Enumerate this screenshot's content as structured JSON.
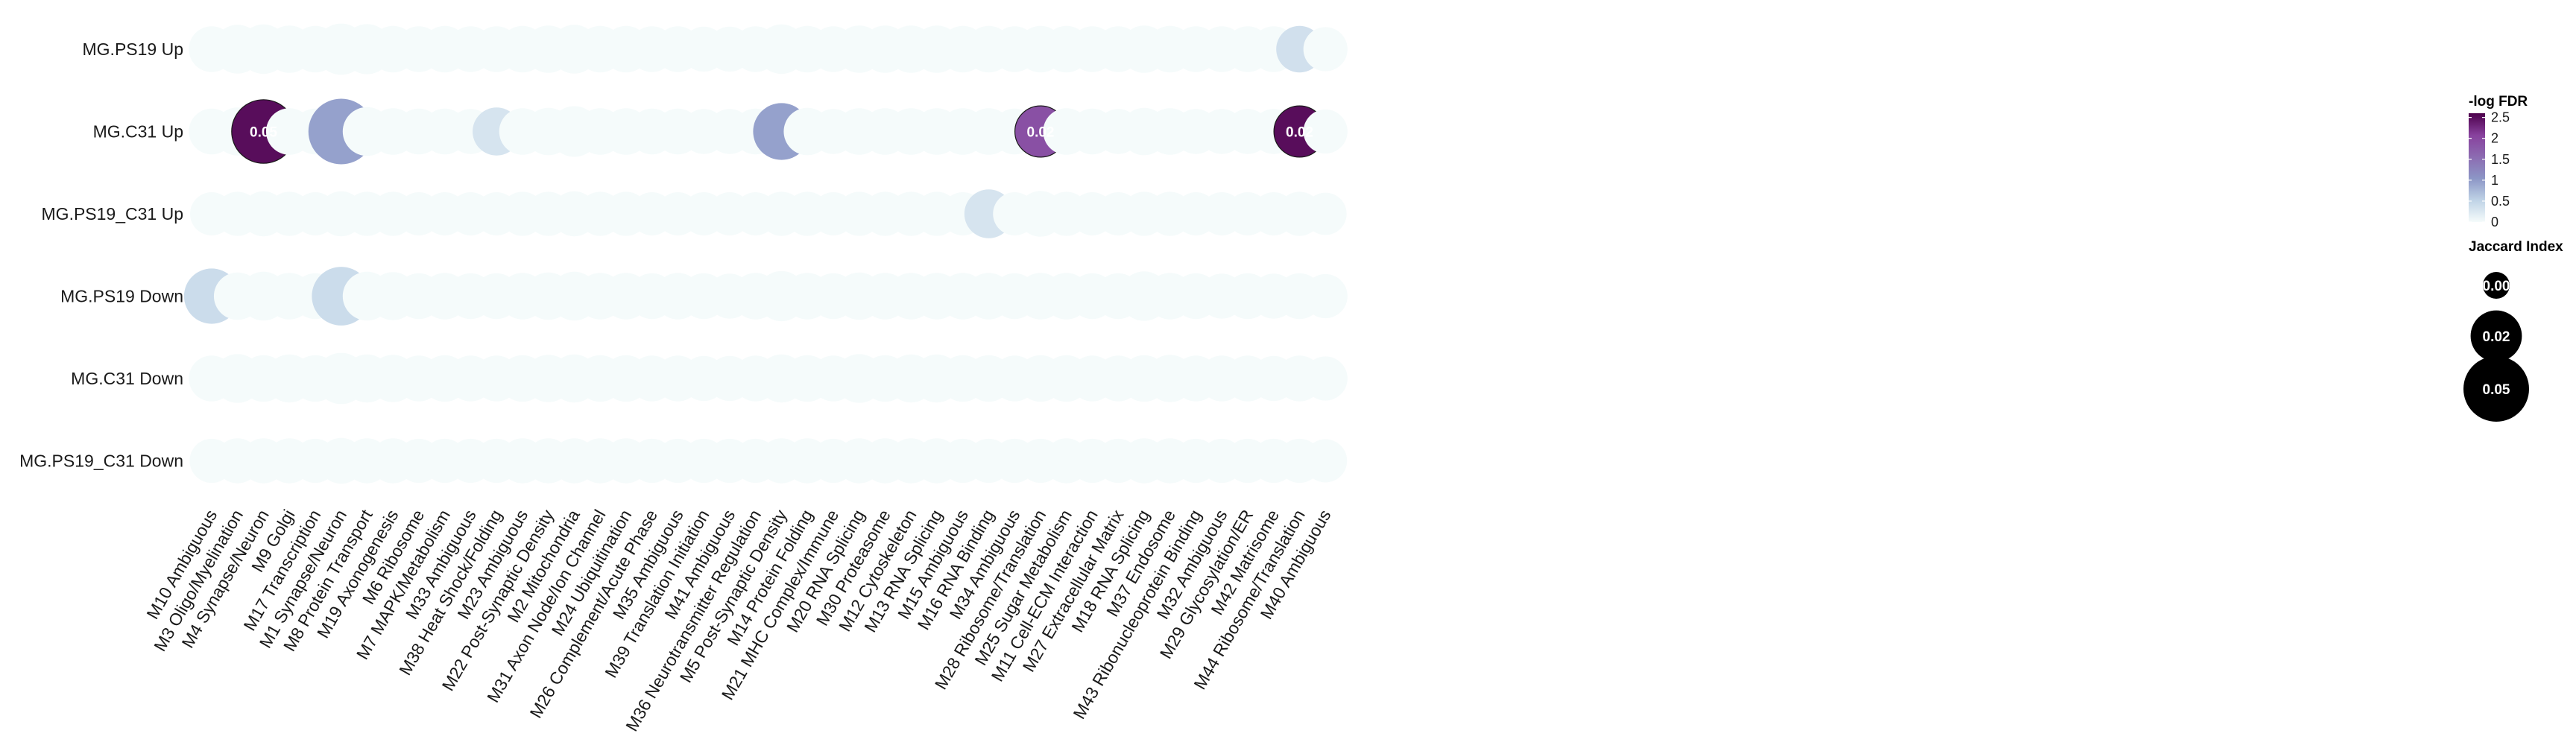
{
  "chart_data": {
    "type": "dotplot",
    "rows": [
      "MG.PS19 Up",
      "MG.C31 Up",
      "MG.PS19_C31 Up",
      "MG.PS19 Down",
      "MG.C31 Down",
      "MG.PS19_C31 Down"
    ],
    "columns": [
      "M10 Ambiguous",
      "M3 Oligo/Myelination",
      "M4 Synapse/Neuron",
      "M9 Golgi",
      "M17 Transcription",
      "M1 Synapse/Neuron",
      "M8 Protein Transport",
      "M19 Axonogenesis",
      "M6 Ribosome",
      "M7 MAPK/Metabolism",
      "M33 Ambiguous",
      "M38 Heat Shock/Folding",
      "M23 Ambiguous",
      "M22 Post-Synaptic Density",
      "M2 Mitochondria",
      "M31 Axon Node/Ion Channel",
      "M24 Ubiquitination",
      "M26 Complement/Acute Phase",
      "M35 Ambiguous",
      "M39 Translation Initiation",
      "M41 Ambiguous",
      "M36 Neurotransmitter Regulation",
      "M5 Post-Synaptic Density",
      "M14 Protein Folding",
      "M21 MHC Complex/Immune",
      "M20 RNA Splicing",
      "M30 Proteasome",
      "M12 Cytoskeleton",
      "M13 RNA Splicing",
      "M15 Ambiguous",
      "M16 RNA Binding",
      "M34 Ambiguous",
      "M28 Ribosome/Translation",
      "M25 Sugar Metabolism",
      "M11 Cell-ECM Interaction",
      "M27 Extracellular Matrix",
      "M18 RNA Splicing",
      "M37 Endosome",
      "M43 Ribonucleoprotein Binding",
      "M32 Ambiguous",
      "M29 Glycosylation/ER",
      "M42 Matrisome",
      "M44 Ribosome/Translation",
      "M40 Ambiguous"
    ],
    "jaccard": [
      [
        0.012,
        0.016,
        0.017,
        0.014,
        0.013,
        0.02,
        0.018,
        0.013,
        0.012,
        0.013,
        0.012,
        0.012,
        0.013,
        0.014,
        0.016,
        0.013,
        0.013,
        0.012,
        0.012,
        0.011,
        0.011,
        0.012,
        0.017,
        0.013,
        0.012,
        0.014,
        0.014,
        0.014,
        0.014,
        0.013,
        0.013,
        0.012,
        0.013,
        0.013,
        0.012,
        0.012,
        0.014,
        0.013,
        0.012,
        0.012,
        0.012,
        0.012,
        0.013,
        0.01
      ],
      [
        0.012,
        0.015,
        0.045,
        0.013,
        0.012,
        0.05,
        0.016,
        0.013,
        0.012,
        0.012,
        0.011,
        0.015,
        0.013,
        0.014,
        0.019,
        0.013,
        0.013,
        0.012,
        0.012,
        0.011,
        0.011,
        0.012,
        0.03,
        0.014,
        0.011,
        0.013,
        0.013,
        0.013,
        0.013,
        0.013,
        0.013,
        0.012,
        0.02,
        0.013,
        0.012,
        0.011,
        0.014,
        0.013,
        0.011,
        0.011,
        0.011,
        0.011,
        0.02,
        0.01
      ],
      [
        0.009,
        0.01,
        0.011,
        0.01,
        0.009,
        0.011,
        0.01,
        0.01,
        0.009,
        0.009,
        0.009,
        0.009,
        0.01,
        0.01,
        0.011,
        0.01,
        0.01,
        0.009,
        0.009,
        0.009,
        0.009,
        0.009,
        0.01,
        0.01,
        0.009,
        0.01,
        0.01,
        0.01,
        0.01,
        0.009,
        0.016,
        0.009,
        0.012,
        0.01,
        0.009,
        0.009,
        0.01,
        0.01,
        0.009,
        0.009,
        0.009,
        0.009,
        0.01,
        0.008
      ],
      [
        0.027,
        0.014,
        0.016,
        0.013,
        0.012,
        0.034,
        0.016,
        0.015,
        0.012,
        0.013,
        0.012,
        0.012,
        0.013,
        0.014,
        0.016,
        0.013,
        0.013,
        0.012,
        0.013,
        0.012,
        0.011,
        0.013,
        0.018,
        0.013,
        0.012,
        0.014,
        0.013,
        0.013,
        0.013,
        0.013,
        0.013,
        0.012,
        0.013,
        0.013,
        0.012,
        0.012,
        0.017,
        0.013,
        0.012,
        0.011,
        0.012,
        0.011,
        0.012,
        0.01
      ],
      [
        0.012,
        0.016,
        0.013,
        0.015,
        0.013,
        0.02,
        0.015,
        0.014,
        0.012,
        0.013,
        0.012,
        0.012,
        0.013,
        0.014,
        0.015,
        0.013,
        0.013,
        0.012,
        0.012,
        0.011,
        0.011,
        0.012,
        0.015,
        0.013,
        0.012,
        0.016,
        0.013,
        0.015,
        0.015,
        0.013,
        0.013,
        0.012,
        0.013,
        0.013,
        0.012,
        0.012,
        0.013,
        0.014,
        0.012,
        0.012,
        0.012,
        0.011,
        0.012,
        0.01
      ],
      [
        0.01,
        0.011,
        0.011,
        0.011,
        0.01,
        0.012,
        0.011,
        0.011,
        0.01,
        0.01,
        0.01,
        0.01,
        0.011,
        0.011,
        0.011,
        0.011,
        0.011,
        0.01,
        0.01,
        0.01,
        0.01,
        0.01,
        0.011,
        0.011,
        0.01,
        0.011,
        0.011,
        0.011,
        0.011,
        0.01,
        0.01,
        0.01,
        0.01,
        0.011,
        0.01,
        0.01,
        0.011,
        0.011,
        0.01,
        0.01,
        0.01,
        0.01,
        0.01,
        0.009
      ]
    ],
    "neg_log_fdr": [
      [
        0,
        0,
        0,
        0,
        0,
        0,
        0,
        0,
        0,
        0,
        0,
        0,
        0,
        0,
        0,
        0,
        0,
        0,
        0,
        0,
        0,
        0,
        0,
        0,
        0,
        0,
        0,
        0,
        0,
        0,
        0,
        0,
        0,
        0,
        0,
        0,
        0,
        0,
        0,
        0,
        0,
        0,
        0.35,
        0
      ],
      [
        0,
        0,
        2.5,
        0,
        0,
        0.95,
        0,
        0,
        0,
        0,
        0,
        0.3,
        0,
        0,
        0,
        0,
        0,
        0,
        0,
        0,
        0,
        0,
        0.95,
        0,
        0,
        0,
        0,
        0,
        0,
        0,
        0,
        0,
        1.9,
        0,
        0,
        0,
        0,
        0,
        0,
        0,
        0,
        0,
        2.5,
        0
      ],
      [
        0,
        0,
        0,
        0,
        0,
        0,
        0,
        0,
        0,
        0,
        0,
        0,
        0,
        0,
        0,
        0,
        0,
        0,
        0,
        0,
        0,
        0,
        0,
        0,
        0,
        0,
        0,
        0,
        0,
        0,
        0.3,
        0,
        0,
        0,
        0,
        0,
        0,
        0,
        0,
        0,
        0,
        0,
        0,
        0
      ],
      [
        0.4,
        0,
        0,
        0,
        0,
        0.4,
        0,
        0,
        0,
        0,
        0,
        0,
        0,
        0,
        0,
        0,
        0,
        0,
        0,
        0,
        0,
        0,
        0,
        0,
        0,
        0,
        0,
        0,
        0,
        0,
        0,
        0,
        0,
        0,
        0,
        0,
        0,
        0,
        0,
        0,
        0,
        0,
        0,
        0
      ],
      [
        0,
        0,
        0,
        0,
        0,
        0,
        0,
        0,
        0,
        0,
        0,
        0,
        0,
        0,
        0,
        0,
        0,
        0,
        0,
        0,
        0,
        0,
        0,
        0,
        0,
        0,
        0,
        0,
        0,
        0,
        0,
        0,
        0,
        0,
        0,
        0,
        0,
        0,
        0,
        0,
        0,
        0,
        0,
        0
      ],
      [
        0,
        0,
        0,
        0,
        0,
        0,
        0,
        0,
        0,
        0,
        0,
        0,
        0,
        0,
        0,
        0,
        0,
        0,
        0,
        0,
        0,
        0,
        0,
        0,
        0,
        0,
        0,
        0,
        0,
        0,
        0,
        0,
        0,
        0,
        0,
        0,
        0,
        0,
        0,
        0,
        0,
        0,
        0,
        0
      ]
    ],
    "dot_labels": [
      {
        "row": 1,
        "col": 2,
        "text": "0.05"
      },
      {
        "row": 1,
        "col": 32,
        "text": "0.02"
      },
      {
        "row": 1,
        "col": 42,
        "text": "0.02"
      }
    ],
    "color_legend": {
      "title": "-log FDR",
      "ticks": [
        "2.5",
        "2",
        "1.5",
        "1",
        "0.5",
        "0"
      ],
      "tick_values": [
        2.5,
        2,
        1.5,
        1,
        0.5,
        0
      ],
      "range": [
        0,
        2.6
      ],
      "colors": [
        "#f5fbfb",
        "#bfd3e6",
        "#8c96c6",
        "#8c6bb1",
        "#88419d",
        "#4d004b"
      ]
    },
    "size_legend": {
      "title": "Jaccard Index",
      "labels": [
        "0.00",
        "0.02",
        "0.05"
      ],
      "values": [
        0.0,
        0.02,
        0.05
      ]
    },
    "type_note": ""
  }
}
